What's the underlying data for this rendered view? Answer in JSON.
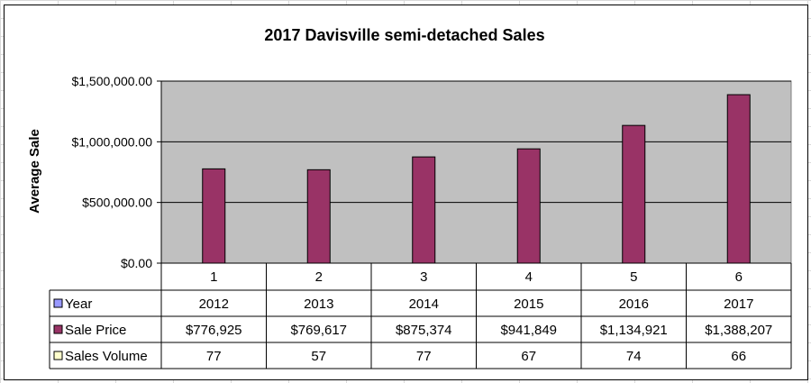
{
  "chart_data": {
    "type": "bar",
    "title": "2017 Davisville semi-detached Sales",
    "ylabel": "Average Sale",
    "ylim": [
      0,
      1500000
    ],
    "y_ticks": [
      0,
      500000,
      1000000,
      1500000
    ],
    "y_tick_labels": [
      "$0.00",
      "$500,000.00",
      "$1,000,000.00",
      "$1,500,000.00"
    ],
    "categories": [
      "1",
      "2",
      "3",
      "4",
      "5",
      "6"
    ],
    "series": [
      {
        "name": "Year",
        "values": [
          2012,
          2013,
          2014,
          2015,
          2016,
          2017
        ],
        "labels": [
          "2012",
          "2013",
          "2014",
          "2015",
          "2016",
          "2017"
        ],
        "color": "#9999ff",
        "plotted": false
      },
      {
        "name": "Sale Price",
        "values": [
          776925,
          769617,
          875374,
          941849,
          1134921,
          1388207
        ],
        "labels": [
          "$776,925",
          "$769,617",
          "$875,374",
          "$941,849",
          "$1,134,921",
          "$1,388,207"
        ],
        "color": "#993366",
        "plotted": true
      },
      {
        "name": "Sales Volume",
        "values": [
          77,
          57,
          77,
          67,
          74,
          66
        ],
        "labels": [
          "77",
          "57",
          "77",
          "67",
          "74",
          "66"
        ],
        "color": "#ffffcc",
        "plotted": false
      }
    ],
    "plot_background": "#c0c0c0",
    "grid": true,
    "legend": "data-table"
  }
}
